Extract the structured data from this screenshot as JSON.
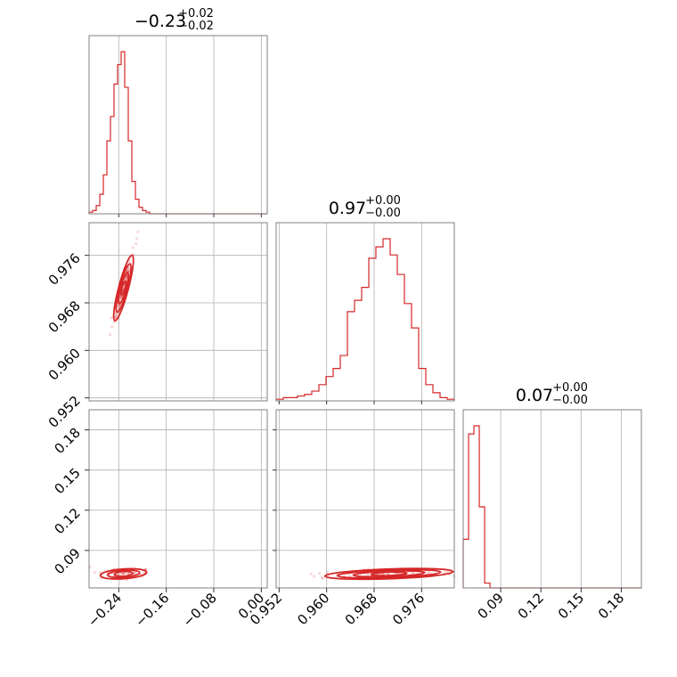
{
  "chart_data": {
    "type": "corner",
    "color": "#d62728",
    "parameters": [
      {
        "median": -0.23,
        "title_main": "−0.23",
        "title_sup": "+0.02",
        "title_sub": "−0.02",
        "range": [
          -0.29,
          0.01
        ],
        "ticks": [
          -0.24,
          -0.16,
          -0.08,
          0.0
        ],
        "tick_labels": [
          "−0.24",
          "−0.16",
          "−0.08",
          "0.00"
        ]
      },
      {
        "median": 0.97,
        "title_main": "0.97",
        "title_sup": "+0.00",
        "title_sub": "−0.00",
        "range": [
          0.9515,
          0.9815
        ],
        "ticks": [
          0.952,
          0.96,
          0.968,
          0.976
        ],
        "tick_labels": [
          "0.952",
          "0.960",
          "0.968",
          "0.976"
        ]
      },
      {
        "median": 0.07,
        "title_main": "0.07",
        "title_sup": "+0.00",
        "title_sub": "−0.00",
        "range": [
          0.062,
          0.195
        ],
        "ticks": [
          0.09,
          0.12,
          0.15,
          0.18
        ],
        "tick_labels": [
          "0.09",
          "0.12",
          "0.15",
          "0.18"
        ]
      }
    ],
    "histograms": [
      {
        "param": 0,
        "bin_edges": [
          -0.29,
          -0.284,
          -0.278,
          -0.272,
          -0.266,
          -0.26,
          -0.254,
          -0.248,
          -0.242,
          -0.236,
          -0.23,
          -0.224,
          -0.218,
          -0.212,
          -0.206,
          -0.2,
          -0.194,
          -0.188,
          -0.182,
          -0.176,
          -0.17,
          -0.164,
          -0.158,
          -0.152,
          -0.146,
          -0.14
        ],
        "counts": [
          1,
          2,
          5,
          12,
          24,
          45,
          60,
          80,
          92,
          100,
          78,
          45,
          20,
          9,
          4,
          2,
          1,
          0,
          0,
          0,
          0,
          0,
          0,
          0,
          0
        ]
      },
      {
        "param": 1,
        "bin_edges": [
          0.9515,
          0.9527,
          0.9539,
          0.9551,
          0.9563,
          0.9575,
          0.9587,
          0.9599,
          0.9611,
          0.9623,
          0.9635,
          0.9647,
          0.9659,
          0.9671,
          0.9683,
          0.9695,
          0.9707,
          0.9719,
          0.9731,
          0.9743,
          0.9755,
          0.9767,
          0.9779,
          0.9791,
          0.9803,
          0.9815
        ],
        "counts": [
          1,
          2,
          2,
          3,
          4,
          6,
          10,
          15,
          20,
          28,
          55,
          62,
          70,
          88,
          95,
          100,
          90,
          78,
          60,
          45,
          20,
          10,
          5,
          2,
          1
        ]
      },
      {
        "param": 2,
        "bin_edges": [
          0.062,
          0.066,
          0.07,
          0.074,
          0.078,
          0.082,
          0.086,
          0.09
        ],
        "counts": [
          30,
          95,
          100,
          50,
          3,
          0,
          0
        ]
      }
    ],
    "pairs": [
      {
        "x_param": 0,
        "y_param": 1,
        "correlation": "strong positive, narrow diagonal band"
      },
      {
        "x_param": 0,
        "y_param": 2,
        "correlation": "flat cluster near 0.07"
      },
      {
        "x_param": 1,
        "y_param": 2,
        "correlation": "flat elongated cluster near 0.07"
      }
    ]
  }
}
